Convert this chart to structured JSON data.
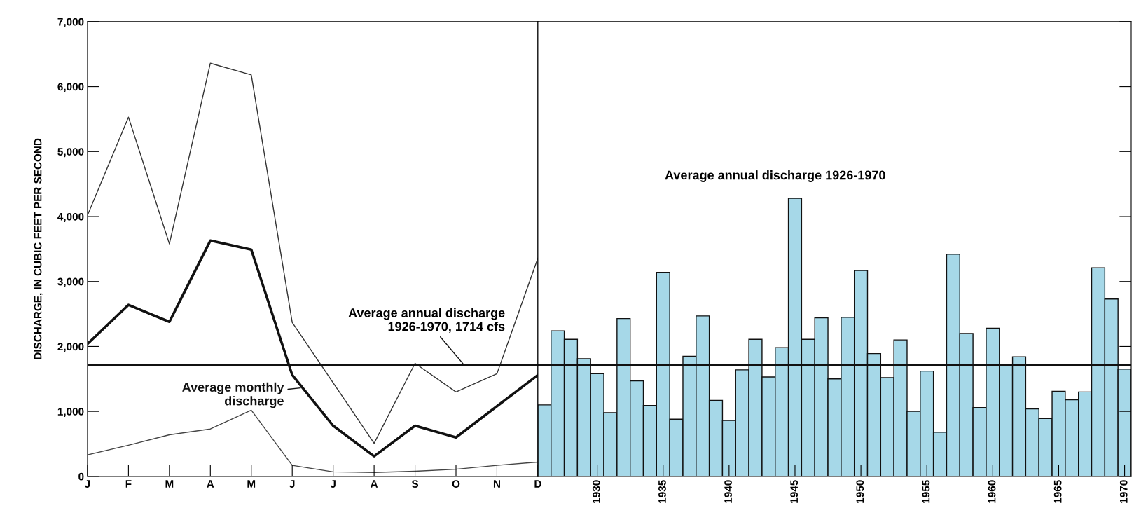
{
  "chart_data": [
    {
      "type": "line",
      "ylabel": "DISCHARGE, IN CUBIC FEET PER SECOND",
      "categories": [
        "J",
        "F",
        "M",
        "A",
        "M",
        "J",
        "J",
        "A",
        "S",
        "O",
        "N",
        "D"
      ],
      "series": [
        {
          "color": "#333333",
          "values": [
            4020,
            5530,
            3580,
            6360,
            6180,
            2370,
            1440,
            510,
            1740,
            1300,
            1580,
            3360
          ]
        },
        {
          "name": "Average monthly\ndischarge",
          "color": "#111111",
          "values": [
            2040,
            2640,
            2380,
            3630,
            3490,
            1560,
            780,
            310,
            780,
            600,
            1080,
            1560
          ]
        },
        {
          "color": "#444444",
          "values": [
            330,
            480,
            640,
            730,
            1020,
            170,
            70,
            60,
            80,
            110,
            170,
            220
          ]
        }
      ],
      "ylim": [
        0,
        7000
      ],
      "yticks": [
        {
          "value": 0,
          "label": "0"
        },
        {
          "value": 1000,
          "label": "1,000"
        },
        {
          "value": 2000,
          "label": "2,000"
        },
        {
          "value": 3000,
          "label": "3,000"
        },
        {
          "value": 4000,
          "label": "4,000"
        },
        {
          "value": 5000,
          "label": "5,000"
        },
        {
          "value": 6000,
          "label": "6,000"
        },
        {
          "value": 7000,
          "label": "7,000"
        }
      ],
      "ref_lines": [
        {
          "axis": "y",
          "value": 1714,
          "label": "Average annual discharge\n1926-1970, 1714 cfs",
          "color": "#111111"
        }
      ],
      "grid": false,
      "marker": "none",
      "line_style": "solid"
    },
    {
      "type": "bar",
      "annotations": [
        "Average annual discharge 1926-1970"
      ],
      "x": [
        1926,
        1927,
        1928,
        1929,
        1930,
        1931,
        1932,
        1933,
        1934,
        1935,
        1936,
        1937,
        1938,
        1939,
        1940,
        1941,
        1942,
        1943,
        1944,
        1945,
        1946,
        1947,
        1948,
        1949,
        1950,
        1951,
        1952,
        1953,
        1954,
        1955,
        1956,
        1957,
        1958,
        1959,
        1960,
        1961,
        1962,
        1963,
        1964,
        1965,
        1966,
        1967,
        1968,
        1969,
        1970
      ],
      "values": [
        1100,
        2240,
        2110,
        1810,
        1580,
        980,
        2430,
        1470,
        1090,
        3140,
        880,
        1850,
        2470,
        1170,
        860,
        1640,
        2110,
        1530,
        1980,
        4280,
        2110,
        2440,
        1500,
        2450,
        3170,
        1890,
        1520,
        2100,
        1000,
        1620,
        680,
        3420,
        2200,
        1060,
        2280,
        1700,
        1840,
        1040,
        890,
        1310,
        1180,
        1300,
        3210,
        2730,
        1650
      ],
      "color": "#a6d8e8",
      "xlim": [
        1925.5,
        1970.5
      ],
      "xticks": [
        1930,
        1935,
        1940,
        1945,
        1950,
        1955,
        1960,
        1965,
        1970
      ],
      "ylim": [
        0,
        7000
      ],
      "yticks": [
        0,
        1000,
        2000,
        3000,
        4000,
        5000,
        6000,
        7000
      ],
      "ref_lines": [
        {
          "axis": "y",
          "value": 1714,
          "color": "#111111"
        }
      ],
      "tick_labels": "x",
      "grid": false,
      "legend": false
    }
  ]
}
